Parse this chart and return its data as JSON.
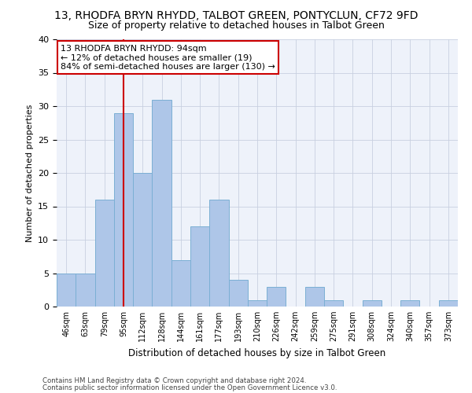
{
  "title": "13, RHODFA BRYN RHYDD, TALBOT GREEN, PONTYCLUN, CF72 9FD",
  "subtitle": "Size of property relative to detached houses in Talbot Green",
  "xlabel": "Distribution of detached houses by size in Talbot Green",
  "ylabel": "Number of detached properties",
  "categories": [
    "46sqm",
    "63sqm",
    "79sqm",
    "95sqm",
    "112sqm",
    "128sqm",
    "144sqm",
    "161sqm",
    "177sqm",
    "193sqm",
    "210sqm",
    "226sqm",
    "242sqm",
    "259sqm",
    "275sqm",
    "291sqm",
    "308sqm",
    "324sqm",
    "340sqm",
    "357sqm",
    "373sqm"
  ],
  "values": [
    5,
    5,
    16,
    29,
    20,
    31,
    7,
    12,
    16,
    4,
    1,
    3,
    0,
    3,
    1,
    0,
    1,
    0,
    1,
    0,
    1
  ],
  "bar_color": "#aec6e8",
  "bar_edge_color": "#7bafd4",
  "vline_x": 3,
  "vline_color": "#cc0000",
  "ylim": [
    0,
    40
  ],
  "yticks": [
    0,
    5,
    10,
    15,
    20,
    25,
    30,
    35,
    40
  ],
  "annotation_title": "13 RHODFA BRYN RHYDD: 94sqm",
  "annotation_line2": "← 12% of detached houses are smaller (19)",
  "annotation_line3": "84% of semi-detached houses are larger (130) →",
  "annotation_box_color": "#ffffff",
  "annotation_box_edge": "#cc0000",
  "footer1": "Contains HM Land Registry data © Crown copyright and database right 2024.",
  "footer2": "Contains public sector information licensed under the Open Government Licence v3.0.",
  "bg_color": "#eef2fa",
  "title_fontsize": 10,
  "subtitle_fontsize": 9
}
